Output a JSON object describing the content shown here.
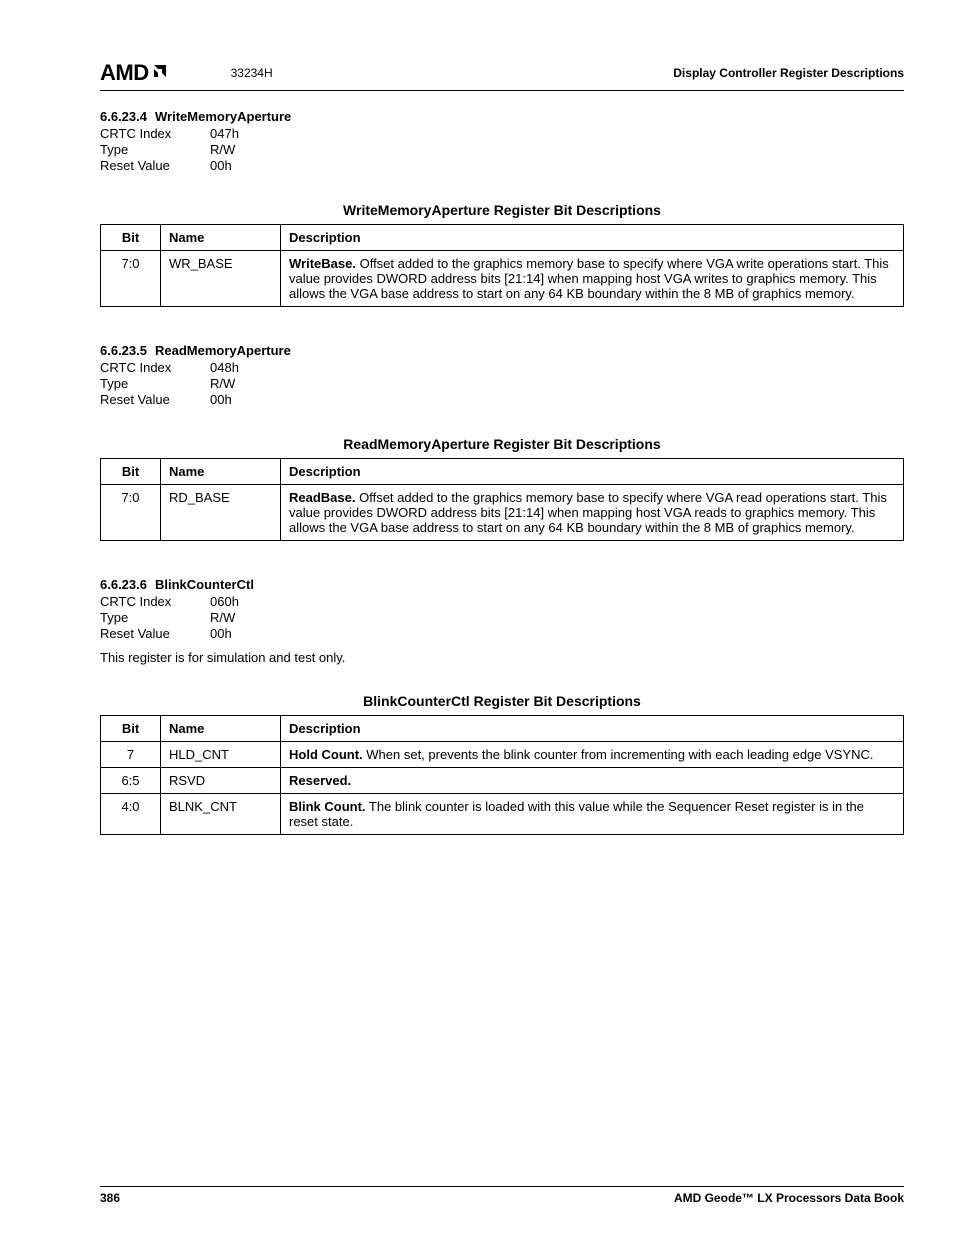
{
  "header": {
    "logo_text": "AMD",
    "doc_num": "33234H",
    "title": "Display Controller Register Descriptions"
  },
  "sections": [
    {
      "num": "6.6.23.4",
      "name": "WriteMemoryAperture",
      "meta": [
        {
          "k": "CRTC Index",
          "v": "047h"
        },
        {
          "k": "Type",
          "v": "R/W"
        },
        {
          "k": "Reset Value",
          "v": "00h"
        }
      ],
      "note": "",
      "table_caption": "WriteMemoryAperture Register Bit Descriptions",
      "headers": {
        "bit": "Bit",
        "name": "Name",
        "desc": "Description"
      },
      "rows": [
        {
          "bit": "7:0",
          "name": "WR_BASE",
          "lead": "WriteBase.",
          "rest": " Offset added to the graphics memory base to specify where VGA write operations start. This value provides DWORD address bits [21:14] when mapping host VGA writes to graphics memory. This allows the VGA base address to start on any 64 KB boundary within the 8 MB of graphics memory."
        }
      ]
    },
    {
      "num": "6.6.23.5",
      "name": "ReadMemoryAperture",
      "meta": [
        {
          "k": "CRTC Index",
          "v": "048h"
        },
        {
          "k": "Type",
          "v": "R/W"
        },
        {
          "k": "Reset Value",
          "v": "00h"
        }
      ],
      "note": "",
      "table_caption": "ReadMemoryAperture Register Bit Descriptions",
      "headers": {
        "bit": "Bit",
        "name": "Name",
        "desc": "Description"
      },
      "rows": [
        {
          "bit": "7:0",
          "name": "RD_BASE",
          "lead": "ReadBase.",
          "rest": " Offset added to the graphics memory base to specify where VGA read operations start. This value provides DWORD address bits [21:14] when mapping host VGA reads to graphics memory. This allows the VGA base address to start on any 64 KB boundary within the 8 MB of graphics memory."
        }
      ]
    },
    {
      "num": "6.6.23.6",
      "name": "BlinkCounterCtl",
      "meta": [
        {
          "k": "CRTC Index",
          "v": "060h"
        },
        {
          "k": "Type",
          "v": "R/W"
        },
        {
          "k": "Reset Value",
          "v": "00h"
        }
      ],
      "note": "This register is for simulation and test only.",
      "table_caption": "BlinkCounterCtl Register Bit Descriptions",
      "headers": {
        "bit": "Bit",
        "name": "Name",
        "desc": "Description"
      },
      "rows": [
        {
          "bit": "7",
          "name": "HLD_CNT",
          "lead": "Hold Count.",
          "rest": " When set, prevents the blink counter from incrementing with each leading edge VSYNC."
        },
        {
          "bit": "6:5",
          "name": "RSVD",
          "lead": "Reserved.",
          "rest": ""
        },
        {
          "bit": "4:0",
          "name": "BLNK_CNT",
          "lead": "Blink Count.",
          "rest": " The blink counter is loaded with this value while the Sequencer Reset register is in the reset state."
        }
      ]
    }
  ],
  "footer": {
    "page_num": "386",
    "book": "AMD Geode™ LX Processors Data Book"
  },
  "style": {
    "border_color": "#000000",
    "text_color": "#000000",
    "body_fontsize": 13,
    "caption_fontsize": 14,
    "header_fontsize": 12,
    "logo_fontsize": 22
  }
}
